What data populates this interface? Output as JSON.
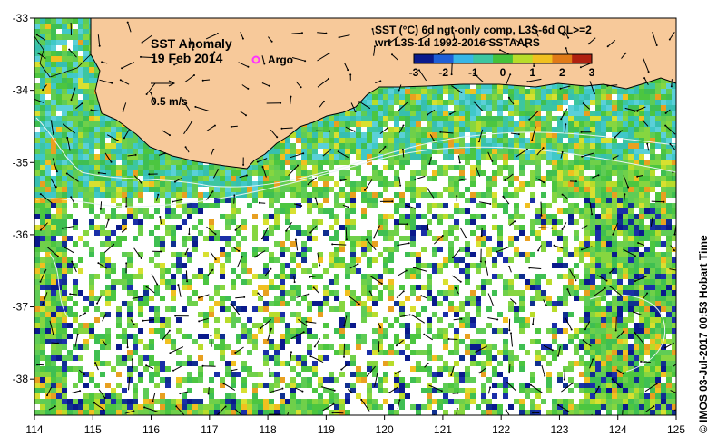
{
  "map": {
    "title": "SST Anomaly",
    "date": "19 Feb 2014",
    "argo_label": "Argo",
    "scale_label": "0.5 m/s",
    "product_line1": "SST (°C) 6d ngt-only comp, L3S-6d QL>=2",
    "product_line2": "wrt L3S-1d 1992-2016 SSTAARS",
    "colorbar": {
      "ticks": [
        "-3",
        "-2",
        "-1",
        "0",
        "1",
        "2",
        "3"
      ],
      "range": [
        -3,
        3
      ],
      "colors": [
        "#0a1a8c",
        "#1f5fd6",
        "#38b6e6",
        "#3cc6a0",
        "#44c23a",
        "#b8dc2a",
        "#f0c020",
        "#e07a18",
        "#b02010"
      ]
    },
    "x_ticks": [
      "114",
      "115",
      "116",
      "117",
      "118",
      "119",
      "120",
      "121",
      "122",
      "123",
      "124",
      "125"
    ],
    "y_ticks": [
      "-33",
      "-34",
      "-35",
      "-36",
      "-37",
      "-38"
    ],
    "lon_range": [
      114,
      125
    ],
    "lat_range": [
      -38.5,
      -33
    ],
    "credit": "©  IMOS 03-Jul-2017 00:53 Hobart Time",
    "colors": {
      "land": "#f7c99a",
      "coast": "#000000",
      "missing": "#ffffff",
      "argo": "#ff33ff",
      "contour": "#e8f4f4"
    }
  }
}
